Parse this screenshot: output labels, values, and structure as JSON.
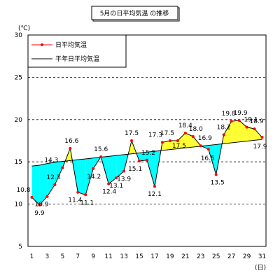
{
  "chart_data": {
    "type": "line",
    "title": "5月の日平均気温 の推移",
    "unit_label": "(℃)",
    "x_unit_label": "(日)",
    "x": [
      1,
      2,
      3,
      4,
      5,
      6,
      7,
      8,
      9,
      10,
      11,
      12,
      13,
      14,
      15,
      16,
      17,
      18,
      19,
      20,
      21,
      22,
      23,
      24,
      25,
      26,
      27,
      28,
      29,
      30,
      31
    ],
    "x_ticks": [
      1,
      3,
      5,
      7,
      9,
      11,
      13,
      15,
      17,
      19,
      21,
      23,
      25,
      27,
      29,
      31
    ],
    "ylim": [
      5,
      30
    ],
    "y_ticks": [
      5,
      10,
      15,
      20,
      25,
      30
    ],
    "grid": "horizontal dashed",
    "legend_placement": "top-left",
    "fill_above_color": "#ffff33",
    "fill_below_color": "#00ffff",
    "daily_color": "#ff0000",
    "normal_color": "#000000",
    "series": [
      {
        "name": "日平均気温",
        "values": [
          10.8,
          9.9,
          10.9,
          12.3,
          14.3,
          16.6,
          11.4,
          11.1,
          14.2,
          15.6,
          12.4,
          13.1,
          13.9,
          17.5,
          15.1,
          15.2,
          12.1,
          17.3,
          17.5,
          17.5,
          18.4,
          18.0,
          16.9,
          16.5,
          13.5,
          18.2,
          19.8,
          19.9,
          19.1,
          18.9,
          17.9
        ],
        "labels": [
          "10.8",
          "9.9",
          "10.9",
          "12.3",
          "14.3",
          "16.6",
          "11.4",
          "11.1",
          "14.2",
          "15.6",
          "12.4",
          "13.1",
          "13.9",
          "17.5",
          "15.1",
          "15.2",
          "12.1",
          "17.3",
          "17.5",
          "17.5",
          "18.4",
          "18.0",
          "16.9",
          "16.5",
          "13.5",
          "18.2",
          "19.8",
          "19.9",
          "19.1",
          "18.9",
          "17.9"
        ]
      },
      {
        "name": "平年日平均気温",
        "values": [
          14.5,
          14.6,
          14.8,
          14.95,
          15.05,
          15.15,
          15.25,
          15.35,
          15.45,
          15.55,
          15.65,
          15.75,
          15.85,
          15.95,
          16.05,
          16.15,
          16.25,
          16.35,
          16.45,
          16.55,
          16.65,
          16.75,
          16.85,
          16.95,
          17.05,
          17.15,
          17.25,
          17.35,
          17.45,
          17.55,
          17.65
        ]
      }
    ]
  }
}
